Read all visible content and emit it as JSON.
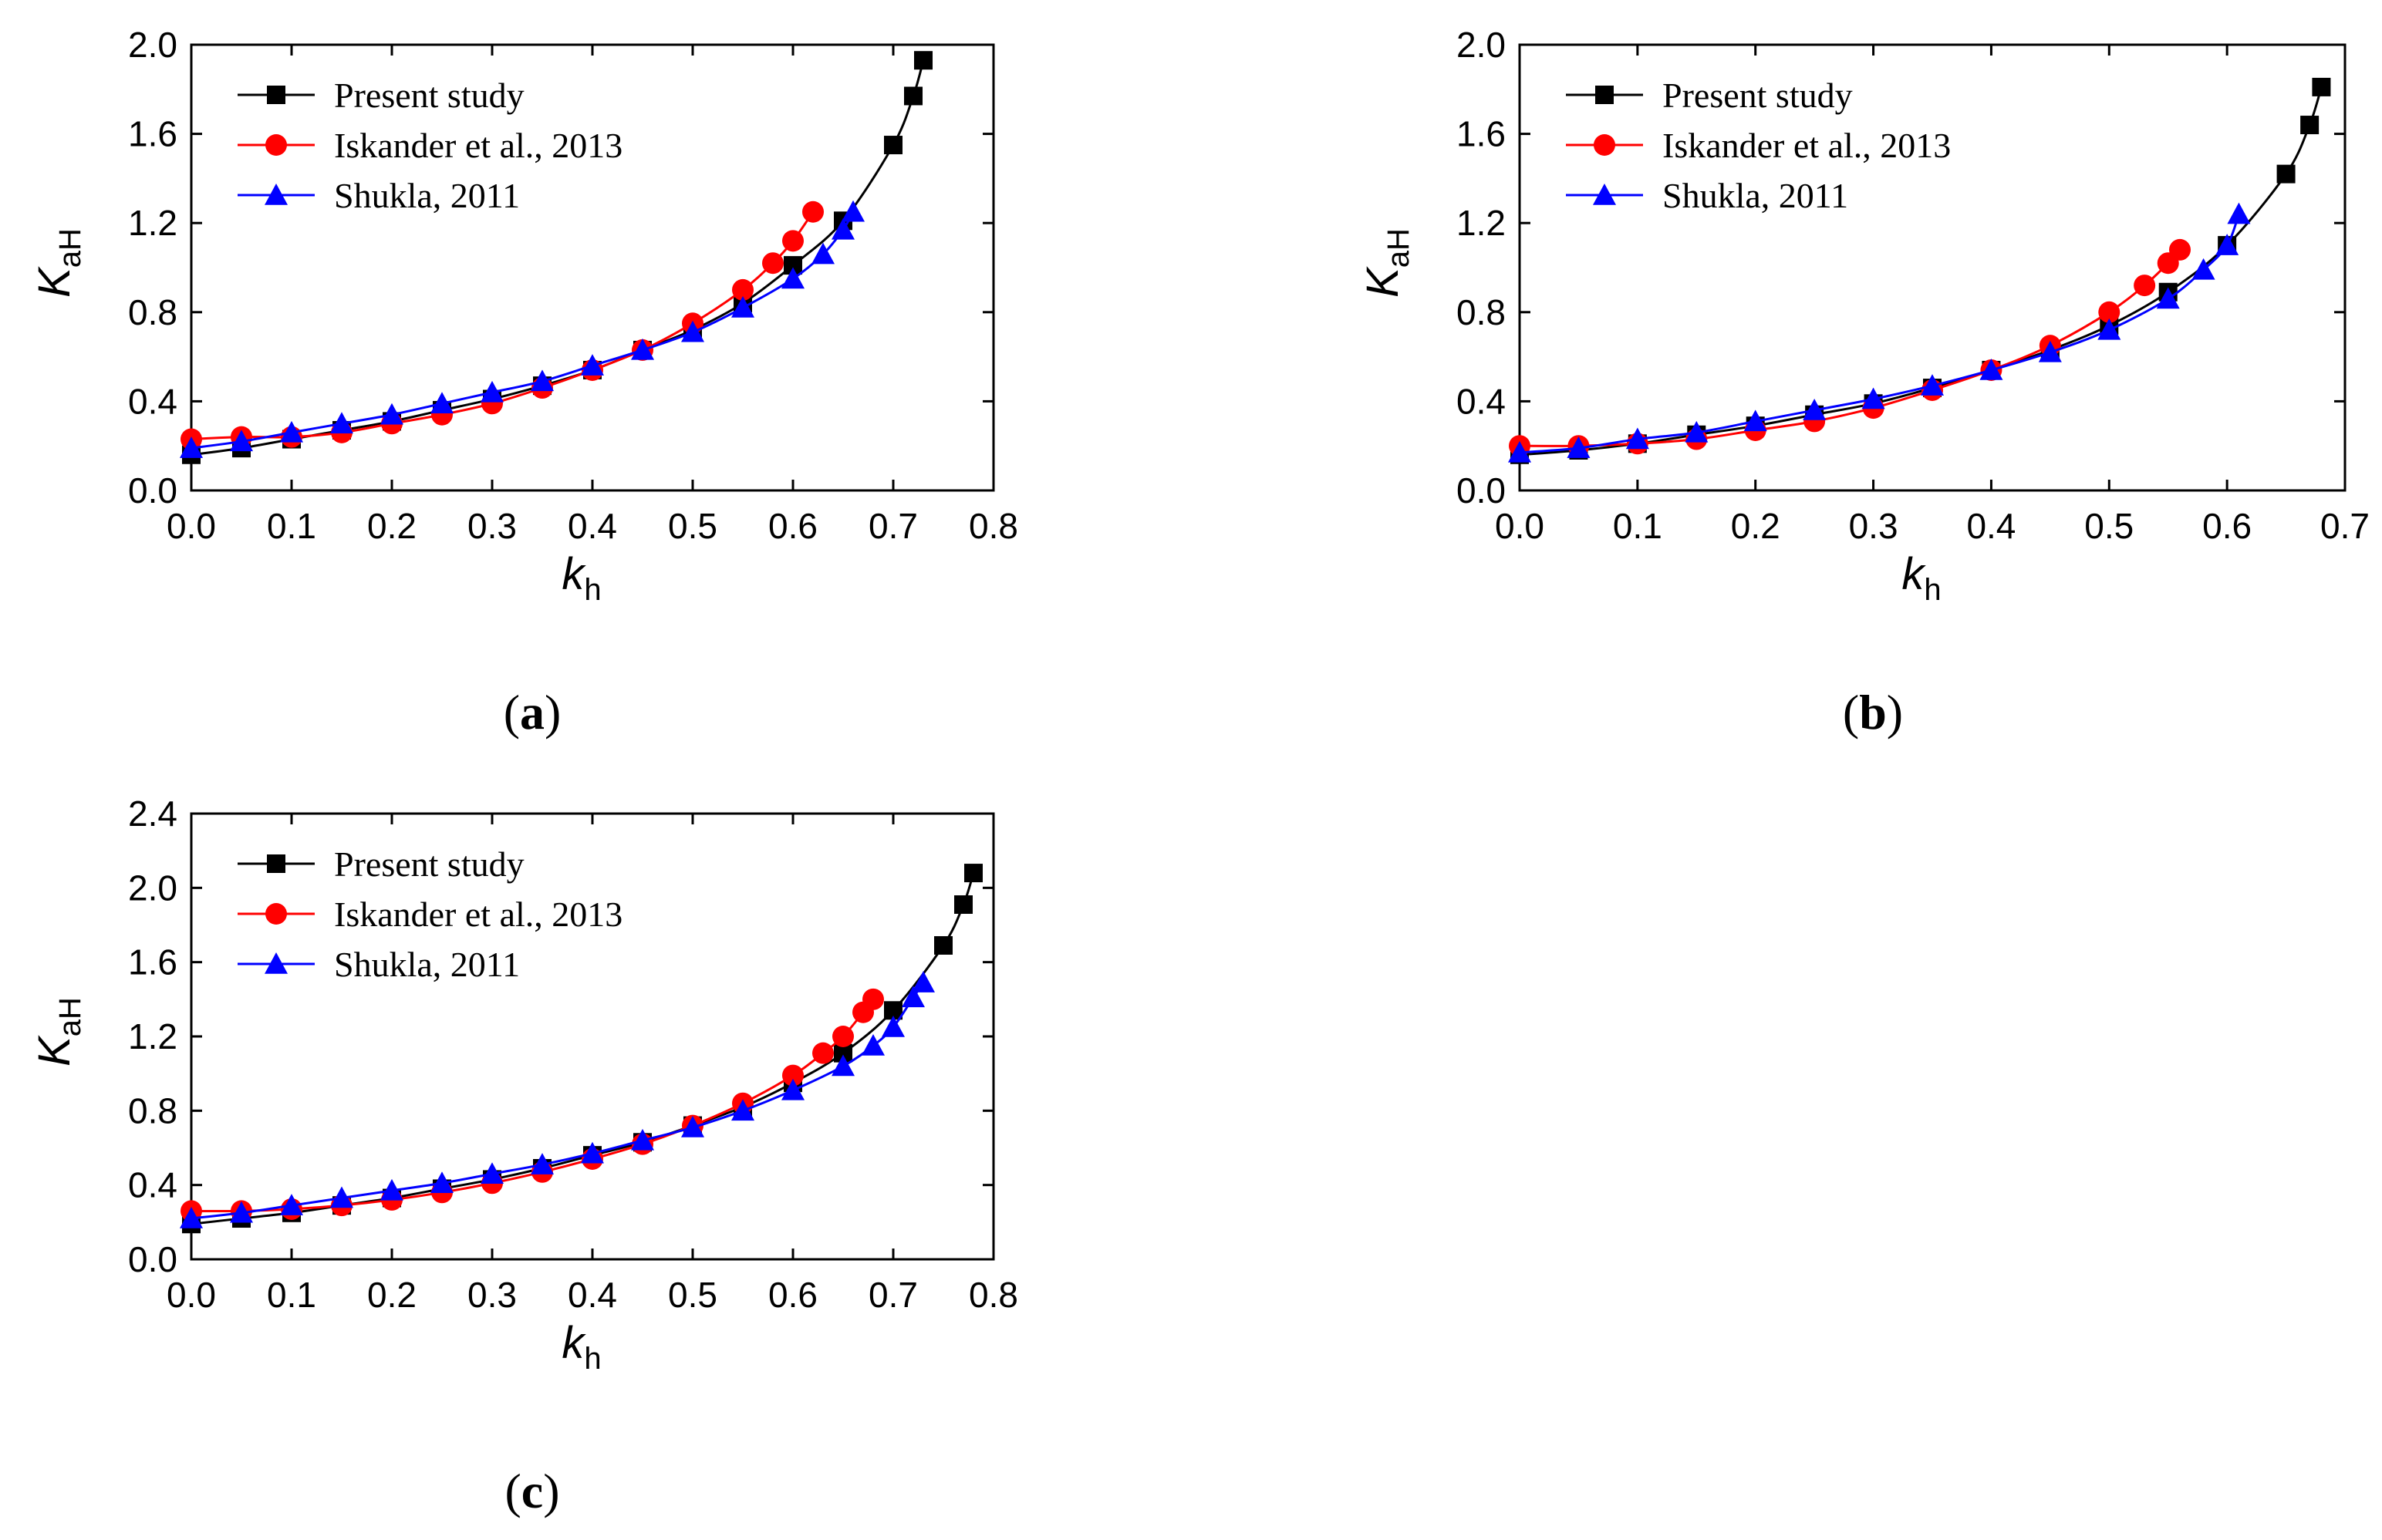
{
  "figure": {
    "background": "#ffffff",
    "series_styles": [
      {
        "name": "Present study",
        "color": "#000000",
        "marker": "square"
      },
      {
        "name": "Iskander et al., 2013",
        "color": "#ff0000",
        "marker": "circle"
      },
      {
        "name": "Shukla, 2011",
        "color": "#0000ff",
        "marker": "triangle"
      }
    ]
  },
  "chart_data": [
    {
      "panel": "a",
      "label": "a",
      "type": "line",
      "title": "",
      "xlabel": {
        "main": "k",
        "sub": "h"
      },
      "ylabel": {
        "main": "K",
        "sub": "aH"
      },
      "xlim": [
        0,
        0.8
      ],
      "ylim": [
        0,
        2.0
      ],
      "xticks": [
        "0.0",
        "0.1",
        "0.2",
        "0.3",
        "0.4",
        "0.5",
        "0.6",
        "0.7",
        "0.8"
      ],
      "yticks": [
        "0.0",
        "0.4",
        "0.8",
        "1.2",
        "1.6",
        "2.0"
      ],
      "grid": false,
      "legend": "top-left",
      "series": [
        {
          "name": "Present study",
          "x": [
            0,
            0.05,
            0.1,
            0.15,
            0.2,
            0.25,
            0.3,
            0.35,
            0.4,
            0.45,
            0.5,
            0.55,
            0.6,
            0.65,
            0.7,
            0.72,
            0.73
          ],
          "y": [
            0.16,
            0.19,
            0.23,
            0.27,
            0.31,
            0.36,
            0.41,
            0.47,
            0.54,
            0.63,
            0.72,
            0.84,
            1.01,
            1.21,
            1.55,
            1.77,
            1.93
          ]
        },
        {
          "name": "Iskander et al., 2013",
          "x": [
            0,
            0.05,
            0.1,
            0.15,
            0.2,
            0.25,
            0.3,
            0.35,
            0.4,
            0.45,
            0.5,
            0.55,
            0.58,
            0.6,
            0.62
          ],
          "y": [
            0.23,
            0.24,
            0.24,
            0.26,
            0.3,
            0.34,
            0.39,
            0.46,
            0.54,
            0.63,
            0.75,
            0.9,
            1.02,
            1.12,
            1.25
          ]
        },
        {
          "name": "Shukla, 2011",
          "x": [
            0,
            0.05,
            0.1,
            0.15,
            0.2,
            0.25,
            0.3,
            0.35,
            0.4,
            0.45,
            0.5,
            0.55,
            0.6,
            0.63,
            0.65,
            0.66
          ],
          "y": [
            0.19,
            0.22,
            0.26,
            0.3,
            0.34,
            0.39,
            0.44,
            0.49,
            0.56,
            0.63,
            0.71,
            0.82,
            0.95,
            1.06,
            1.17,
            1.25
          ]
        }
      ]
    },
    {
      "panel": "b",
      "label": "b",
      "type": "line",
      "title": "",
      "xlabel": {
        "main": "k",
        "sub": "h"
      },
      "ylabel": {
        "main": "K",
        "sub": "aH"
      },
      "xlim": [
        0,
        0.7
      ],
      "ylim": [
        0,
        2.0
      ],
      "xticks": [
        "0.0",
        "0.1",
        "0.2",
        "0.3",
        "0.4",
        "0.5",
        "0.6",
        "0.7"
      ],
      "yticks": [
        "0.0",
        "0.4",
        "0.8",
        "1.2",
        "1.6",
        "2.0"
      ],
      "grid": false,
      "legend": "top-left",
      "series": [
        {
          "name": "Present study",
          "x": [
            0,
            0.05,
            0.1,
            0.15,
            0.2,
            0.25,
            0.3,
            0.35,
            0.4,
            0.45,
            0.5,
            0.55,
            0.6,
            0.65,
            0.67,
            0.68
          ],
          "y": [
            0.16,
            0.18,
            0.21,
            0.25,
            0.29,
            0.34,
            0.39,
            0.46,
            0.54,
            0.63,
            0.74,
            0.89,
            1.1,
            1.42,
            1.64,
            1.81
          ]
        },
        {
          "name": "Iskander et al., 2013",
          "x": [
            0,
            0.05,
            0.1,
            0.15,
            0.2,
            0.25,
            0.3,
            0.35,
            0.4,
            0.45,
            0.5,
            0.53,
            0.55,
            0.56
          ],
          "y": [
            0.2,
            0.2,
            0.21,
            0.23,
            0.27,
            0.31,
            0.37,
            0.45,
            0.54,
            0.65,
            0.8,
            0.92,
            1.02,
            1.08
          ]
        },
        {
          "name": "Shukla, 2011",
          "x": [
            0,
            0.05,
            0.1,
            0.15,
            0.2,
            0.25,
            0.3,
            0.35,
            0.4,
            0.45,
            0.5,
            0.55,
            0.58,
            0.6,
            0.61
          ],
          "y": [
            0.17,
            0.19,
            0.23,
            0.26,
            0.31,
            0.36,
            0.41,
            0.47,
            0.54,
            0.62,
            0.72,
            0.86,
            0.99,
            1.1,
            1.24
          ]
        }
      ]
    },
    {
      "panel": "c",
      "label": "c",
      "type": "line",
      "title": "",
      "xlabel": {
        "main": "k",
        "sub": "h"
      },
      "ylabel": {
        "main": "K",
        "sub": "aH"
      },
      "xlim": [
        0,
        0.8
      ],
      "ylim": [
        0,
        2.4
      ],
      "xticks": [
        "0.0",
        "0.1",
        "0.2",
        "0.3",
        "0.4",
        "0.5",
        "0.6",
        "0.7",
        "0.8"
      ],
      "yticks": [
        "0.0",
        "0.4",
        "0.8",
        "1.2",
        "1.6",
        "2.0",
        "2.4"
      ],
      "grid": false,
      "legend": "top-left",
      "series": [
        {
          "name": "Present study",
          "x": [
            0,
            0.05,
            0.1,
            0.15,
            0.2,
            0.25,
            0.3,
            0.35,
            0.4,
            0.45,
            0.5,
            0.55,
            0.6,
            0.65,
            0.7,
            0.75,
            0.77,
            0.78
          ],
          "y": [
            0.19,
            0.22,
            0.25,
            0.29,
            0.33,
            0.38,
            0.43,
            0.49,
            0.56,
            0.63,
            0.72,
            0.82,
            0.95,
            1.11,
            1.34,
            1.69,
            1.91,
            2.08
          ]
        },
        {
          "name": "Iskander et al., 2013",
          "x": [
            0,
            0.05,
            0.1,
            0.15,
            0.2,
            0.25,
            0.3,
            0.35,
            0.4,
            0.45,
            0.5,
            0.55,
            0.6,
            0.63,
            0.65,
            0.67,
            0.68
          ],
          "y": [
            0.26,
            0.26,
            0.27,
            0.29,
            0.32,
            0.36,
            0.41,
            0.47,
            0.54,
            0.62,
            0.72,
            0.84,
            0.99,
            1.11,
            1.2,
            1.33,
            1.4
          ]
        },
        {
          "name": "Shukla, 2011",
          "x": [
            0,
            0.05,
            0.1,
            0.15,
            0.2,
            0.25,
            0.3,
            0.35,
            0.4,
            0.45,
            0.5,
            0.55,
            0.6,
            0.65,
            0.68,
            0.7,
            0.72,
            0.73
          ],
          "y": [
            0.22,
            0.25,
            0.29,
            0.33,
            0.37,
            0.41,
            0.46,
            0.51,
            0.57,
            0.64,
            0.71,
            0.8,
            0.91,
            1.04,
            1.15,
            1.25,
            1.41,
            1.49
          ]
        }
      ]
    }
  ]
}
